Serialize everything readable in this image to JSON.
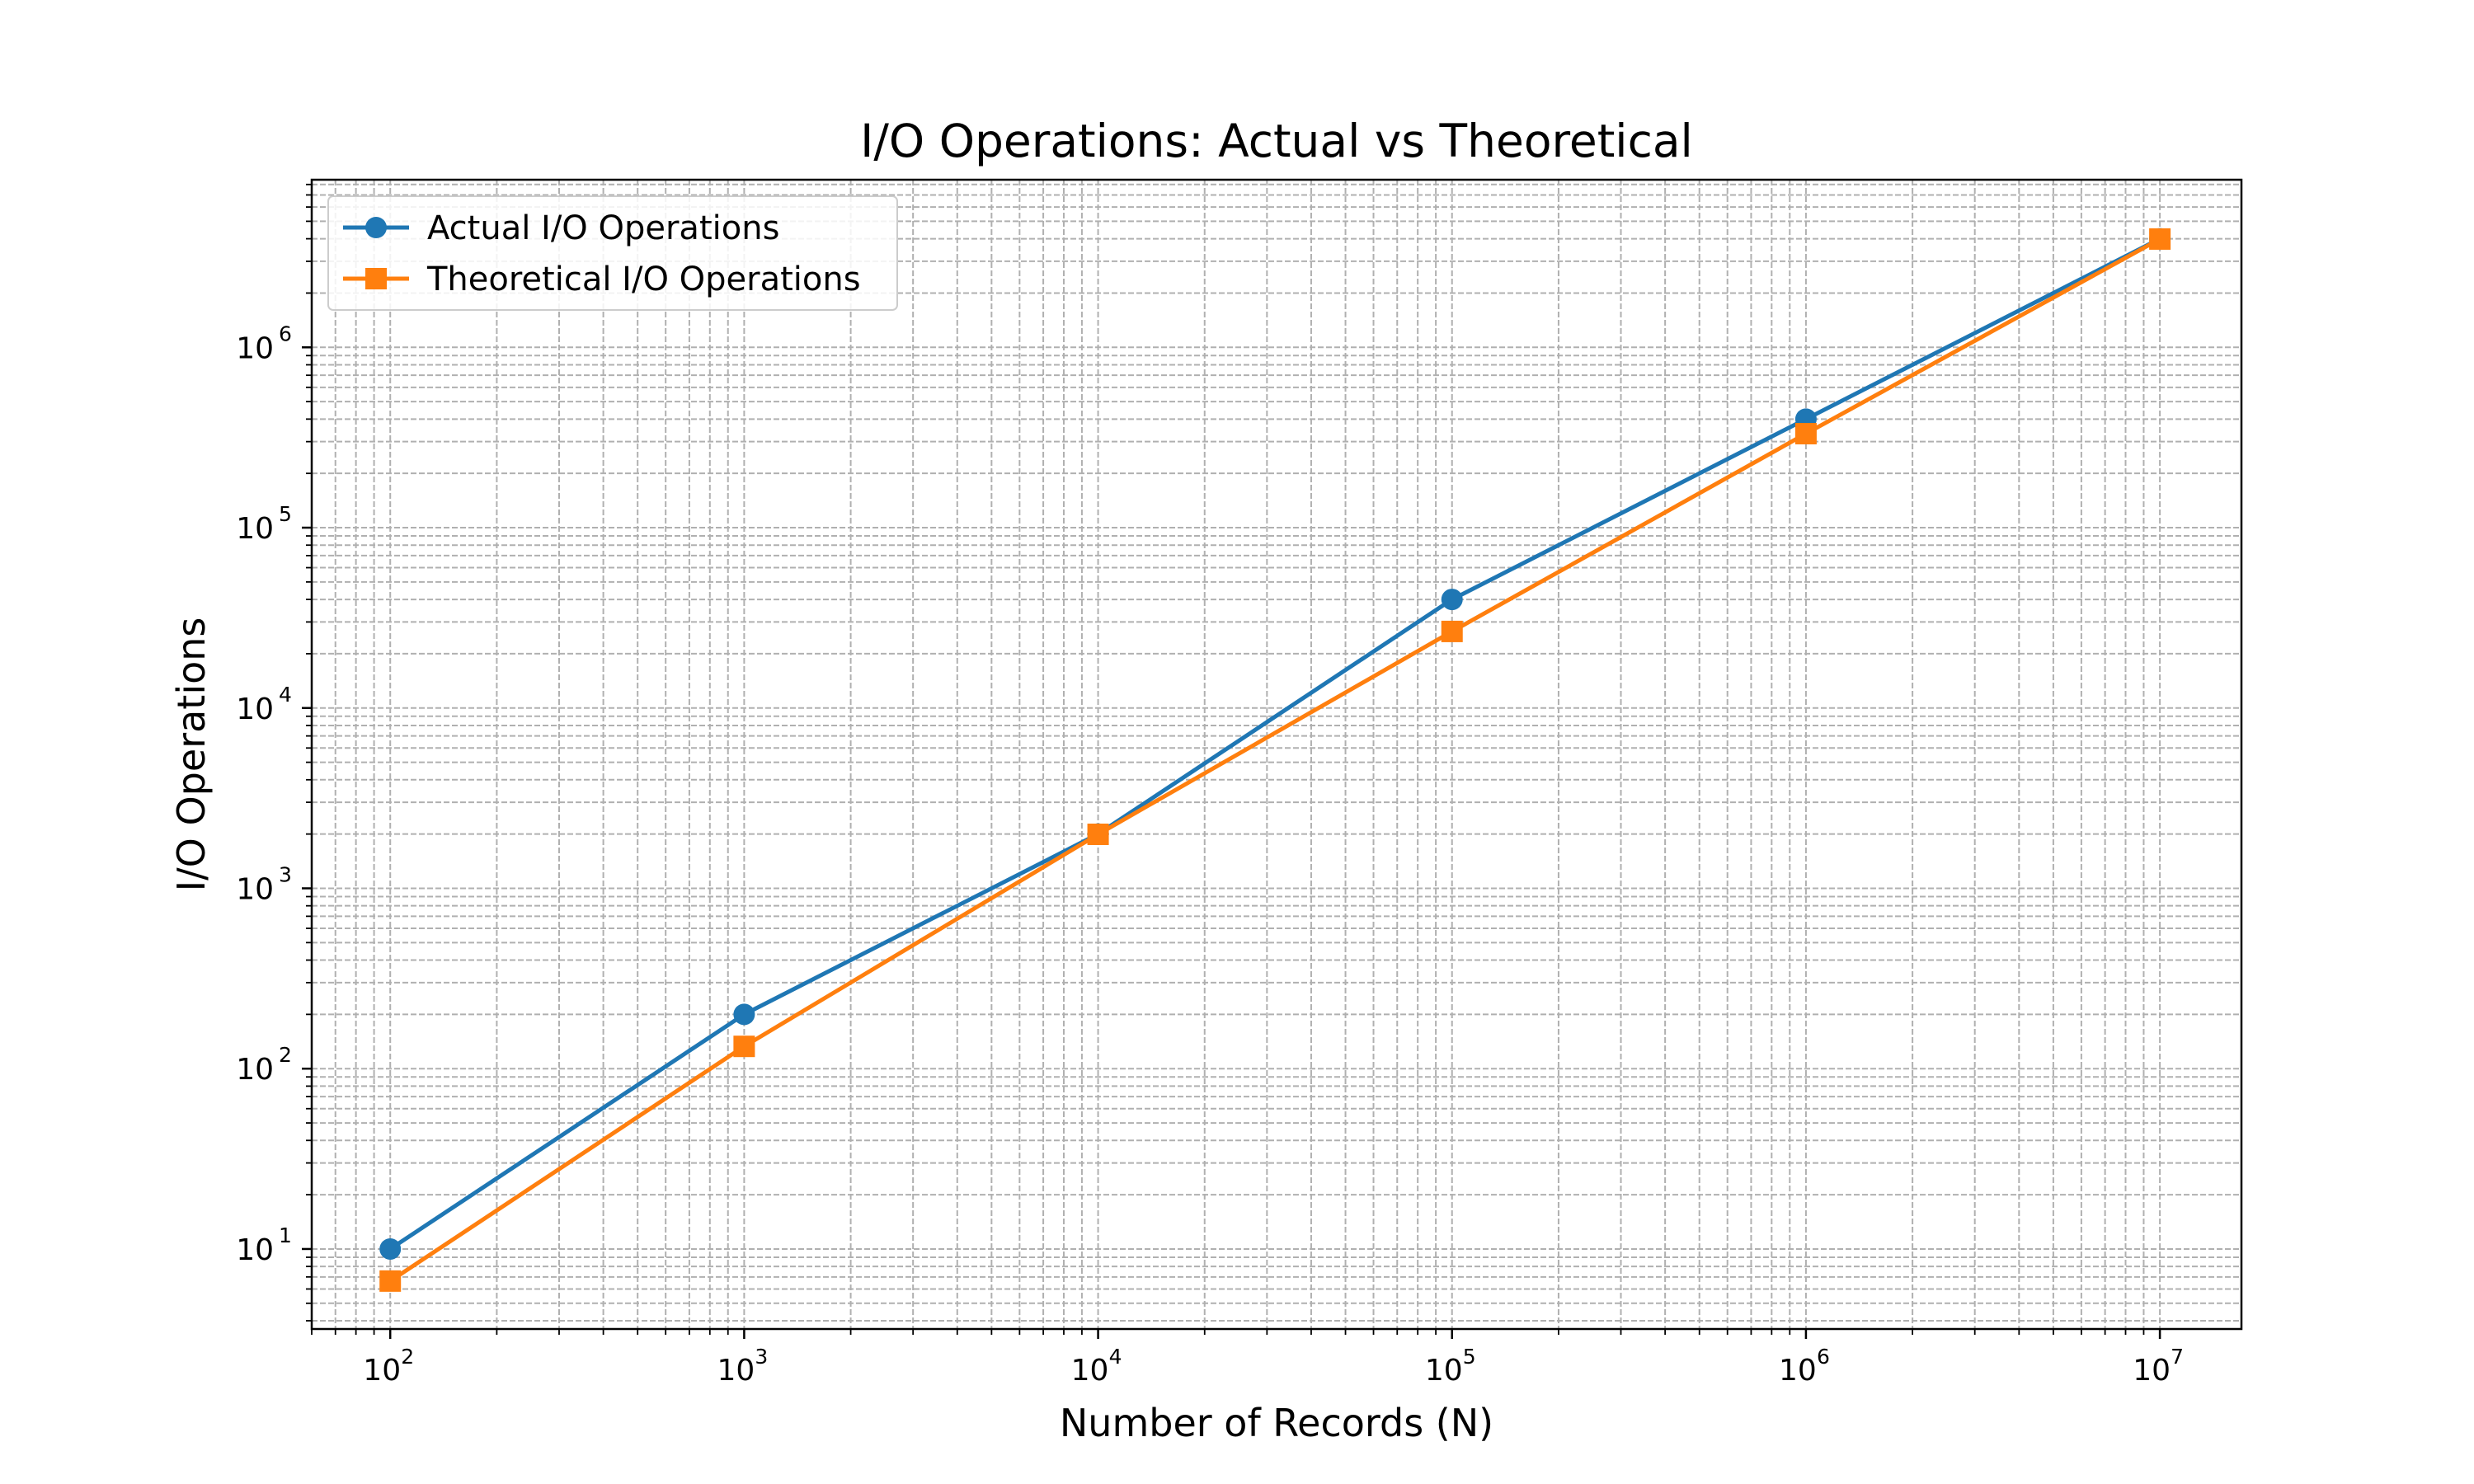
{
  "chart_data": {
    "type": "line",
    "title": "I/O Operations: Actual vs Theoretical",
    "xlabel": "Number of Records (N)",
    "ylabel": "I/O Operations",
    "xscale": "log",
    "yscale": "log",
    "x": [
      100,
      1000,
      10000,
      100000,
      1000000,
      10000000
    ],
    "xlim": [
      60,
      17000000
    ],
    "ylim": [
      3.6,
      8500000
    ],
    "xticks": [
      {
        "base": "10",
        "exp": "2",
        "value": 100
      },
      {
        "base": "10",
        "exp": "3",
        "value": 1000
      },
      {
        "base": "10",
        "exp": "4",
        "value": 10000
      },
      {
        "base": "10",
        "exp": "5",
        "value": 100000
      },
      {
        "base": "10",
        "exp": "6",
        "value": 1000000
      },
      {
        "base": "10",
        "exp": "7",
        "value": 10000000
      }
    ],
    "yticks": [
      {
        "base": "10",
        "exp": "1",
        "value": 10
      },
      {
        "base": "10",
        "exp": "2",
        "value": 100
      },
      {
        "base": "10",
        "exp": "3",
        "value": 1000
      },
      {
        "base": "10",
        "exp": "4",
        "value": 10000
      },
      {
        "base": "10",
        "exp": "5",
        "value": 100000
      },
      {
        "base": "10",
        "exp": "6",
        "value": 1000000
      }
    ],
    "grid": true,
    "legend_position": "top-left",
    "series": [
      {
        "name": "Actual I/O Operations",
        "color": "#1f77b4",
        "marker": "circle",
        "values": [
          10,
          200,
          2000,
          40000,
          400000,
          4000000
        ]
      },
      {
        "name": "Theoretical I/O Operations",
        "color": "#ff7f0e",
        "marker": "square",
        "values": [
          6.64,
          132.9,
          1993,
          26575,
          332193,
          3986314
        ]
      }
    ]
  }
}
